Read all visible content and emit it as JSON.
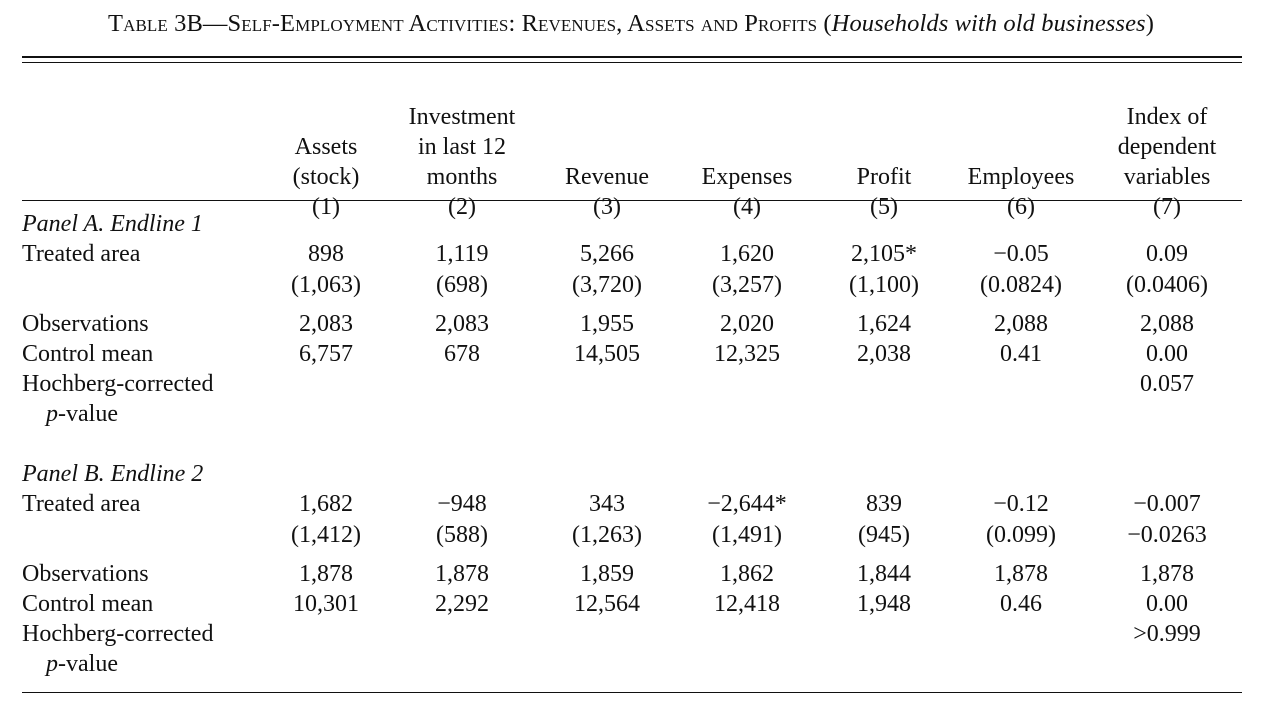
{
  "caption": {
    "table_no": "Table 3B",
    "dash": "—",
    "title": "Self-Employment Activities: Revenues, Assets and Profits",
    "subtitle": "Households with old businesses"
  },
  "columns": [
    {
      "lines": [
        "",
        "",
        "Assets",
        "(stock)"
      ],
      "num": "(1)"
    },
    {
      "lines": [
        "",
        "Investment",
        "in last 12",
        "months"
      ],
      "num": "(2)"
    },
    {
      "lines": [
        "",
        "",
        "",
        "Revenue"
      ],
      "num": "(3)"
    },
    {
      "lines": [
        "",
        "",
        "",
        "Expenses"
      ],
      "num": "(4)"
    },
    {
      "lines": [
        "",
        "",
        "",
        "Profit"
      ],
      "num": "(5)"
    },
    {
      "lines": [
        "",
        "",
        "",
        "Employees"
      ],
      "num": "(6)"
    },
    {
      "lines": [
        "",
        "Index of",
        "dependent",
        "variables"
      ],
      "num": "(7)"
    }
  ],
  "panels": [
    {
      "title": "Panel A. Endline 1",
      "treated_label": "Treated area",
      "treated": [
        "898",
        "1,119",
        "5,266",
        "1,620",
        "2,105*",
        "−0.05",
        "0.09"
      ],
      "treated_se": [
        "(1,063)",
        "(698)",
        "(3,720)",
        "(3,257)",
        "(1,100)",
        "(0.0824)",
        "(0.0406)"
      ],
      "obs_label": "Observations",
      "obs": [
        "2,083",
        "2,083",
        "1,955",
        "2,020",
        "1,624",
        "2,088",
        "2,088"
      ],
      "mean_label": "Control mean",
      "mean": [
        "6,757",
        "678",
        "14,505",
        "12,325",
        "2,038",
        "0.41",
        "0.00"
      ],
      "hoch_label_1": "Hochberg-corrected",
      "hoch_label_2_p": "p",
      "hoch_label_2_rest": "-value",
      "hoch_value": "0.057"
    },
    {
      "title": "Panel B. Endline 2",
      "treated_label": "Treated area",
      "treated": [
        "1,682",
        "−948",
        "343",
        "−2,644*",
        "839",
        "−0.12",
        "−0.007"
      ],
      "treated_se": [
        "(1,412)",
        "(588)",
        "(1,263)",
        "(1,491)",
        "(945)",
        "(0.099)",
        "−0.0263"
      ],
      "obs_label": "Observations",
      "obs": [
        "1,878",
        "1,878",
        "1,859",
        "1,862",
        "1,844",
        "1,878",
        "1,878"
      ],
      "mean_label": "Control mean",
      "mean": [
        "10,301",
        "2,292",
        "12,564",
        "12,418",
        "1,948",
        "0.46",
        "0.00"
      ],
      "hoch_label_1": "Hochberg-corrected",
      "hoch_label_2_p": "p",
      "hoch_label_2_rest": "-value",
      "hoch_value": ">0.999"
    }
  ]
}
